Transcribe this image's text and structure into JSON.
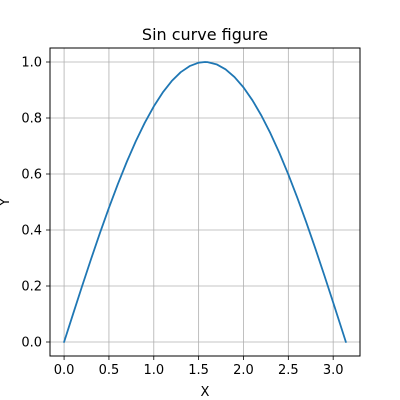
{
  "chart_data": {
    "type": "line",
    "title": "Sin curve figure",
    "xlabel": "X",
    "ylabel": "Y",
    "xlim": [
      -0.157,
      3.299
    ],
    "ylim": [
      -0.05,
      1.05
    ],
    "grid": true,
    "x_ticks": [
      0.0,
      0.5,
      1.0,
      1.5,
      2.0,
      2.5,
      3.0
    ],
    "x_tick_labels": [
      "0.0",
      "0.5",
      "1.0",
      "1.5",
      "2.0",
      "2.5",
      "3.0"
    ],
    "y_ticks": [
      0.0,
      0.2,
      0.4,
      0.6,
      0.8,
      1.0
    ],
    "y_tick_labels": [
      "0.0",
      "0.2",
      "0.4",
      "0.6",
      "0.8",
      "1.0"
    ],
    "series": [
      {
        "color": "#1f77b4",
        "x": [
          0.0,
          0.1,
          0.2,
          0.3,
          0.4,
          0.5,
          0.6,
          0.7,
          0.8,
          0.9,
          1.0,
          1.1,
          1.2,
          1.3,
          1.4,
          1.5,
          1.5708,
          1.6,
          1.7,
          1.8,
          1.9,
          2.0,
          2.1,
          2.2,
          2.3,
          2.4,
          2.5,
          2.6,
          2.7,
          2.8,
          2.9,
          3.0,
          3.1,
          3.1416
        ],
        "y": [
          0.0,
          0.0998,
          0.1987,
          0.2955,
          0.3894,
          0.4794,
          0.5646,
          0.6442,
          0.7174,
          0.7833,
          0.8415,
          0.8912,
          0.932,
          0.9636,
          0.9854,
          0.9975,
          1.0,
          0.9996,
          0.9917,
          0.9738,
          0.9463,
          0.9093,
          0.8632,
          0.8085,
          0.7457,
          0.6755,
          0.5985,
          0.5155,
          0.4274,
          0.335,
          0.2392,
          0.1411,
          0.0416,
          0.0
        ]
      }
    ]
  }
}
